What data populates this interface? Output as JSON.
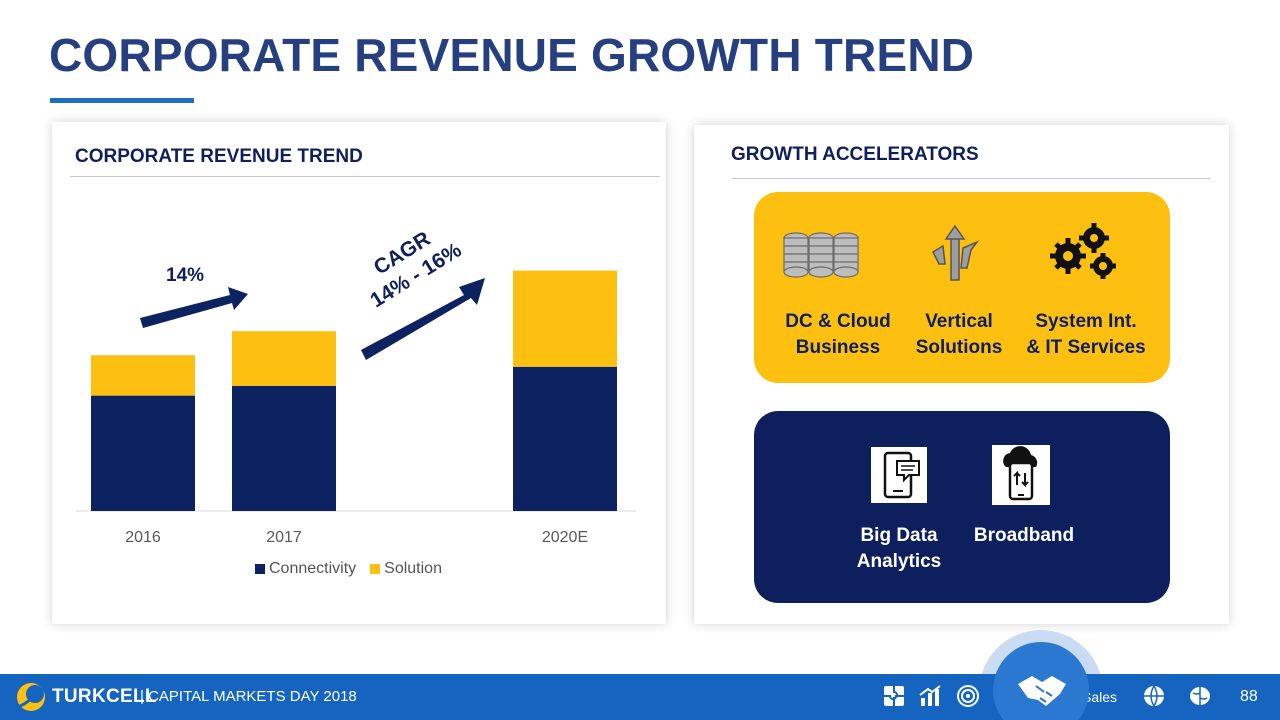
{
  "title": "CORPORATE REVENUE GROWTH TREND",
  "left_panel": {
    "heading": "CORPORATE REVENUE TREND",
    "growth_label": "14%",
    "cagr_line1": "CAGR",
    "cagr_line2": "14% - 16%"
  },
  "chart_data": {
    "type": "bar",
    "stacked": true,
    "categories": [
      "2016",
      "2017",
      "2020E"
    ],
    "series": [
      {
        "name": "Connectivity",
        "color": "#0d2260",
        "values": [
          120,
          130,
          150
        ]
      },
      {
        "name": "Solution",
        "color": "#fdc010",
        "values": [
          42,
          57,
          100
        ]
      }
    ],
    "ylim": [
      0,
      260
    ],
    "grid": false,
    "legend": "bottom",
    "notes": "Values are approximate; no y-axis or data labels shown"
  },
  "right_panel": {
    "heading": "GROWTH ACCELERATORS",
    "yellow_items": [
      {
        "line1": "DC & Cloud",
        "line2": "Business",
        "icon": "server-stack-icon"
      },
      {
        "line1": "Vertical",
        "line2": "Solutions",
        "icon": "split-arrows-icon"
      },
      {
        "line1": "System Int.",
        "line2": "& IT Services",
        "icon": "gears-icon"
      }
    ],
    "navy_items": [
      {
        "line1": "Big Data",
        "line2": "Analytics",
        "icon": "mobile-chat-icon"
      },
      {
        "line1": "Broadband",
        "line2": "",
        "icon": "cloud-mobile-icon"
      }
    ]
  },
  "footer": {
    "brand": "TURKCELL",
    "event": "| CAPITAL MARKETS DAY 2018",
    "section": "Sales",
    "page_number": "88"
  },
  "colors": {
    "title": "#253f7f",
    "navy": "#0d2260",
    "yellow": "#fdc010",
    "footer": "#1565c0"
  }
}
